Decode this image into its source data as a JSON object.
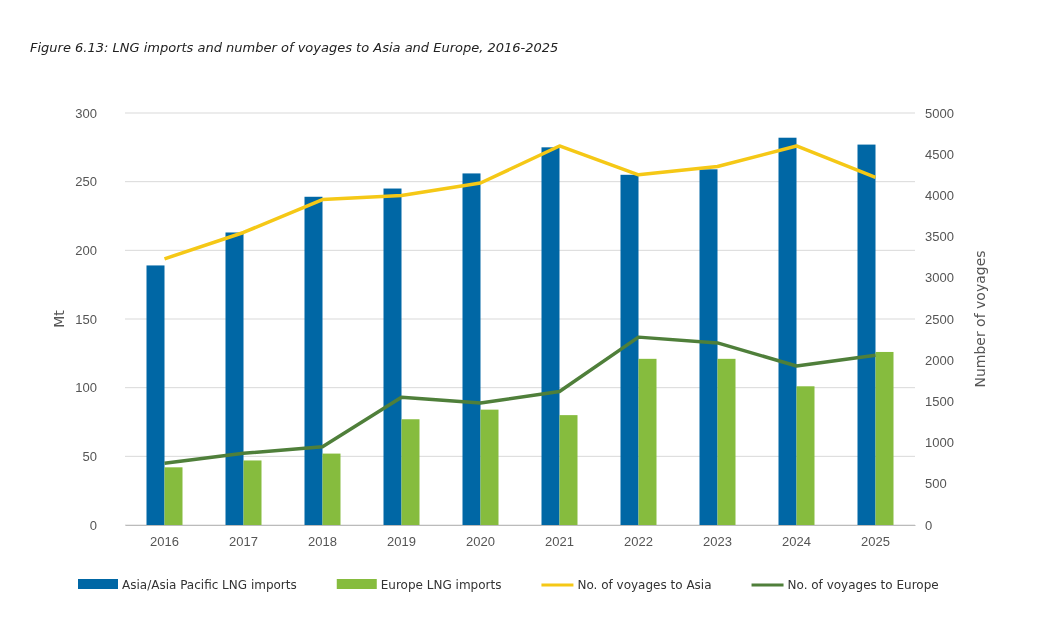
{
  "chart_data": {
    "type": "bar",
    "title": "Figure 6.13: LNG imports and number of voyages to Asia and Europe, 2016-2025",
    "categories": [
      "2016",
      "2017",
      "2018",
      "2019",
      "2020",
      "2021",
      "2022",
      "2023",
      "2024",
      "2025"
    ],
    "series": [
      {
        "name": "Asia/Asia Pacific LNG imports",
        "color": "#0067a5",
        "values": [
          189,
          213,
          239,
          245,
          256,
          275,
          255,
          259,
          282,
          277
        ]
      },
      {
        "name": "Europe LNG imports",
        "color": "#86bc3e",
        "values": [
          42,
          47,
          52,
          77,
          84,
          80,
          121,
          121,
          101,
          126
        ]
      },
      {
        "name": "No. of voyages to Asia",
        "type": "line",
        "axis": "y2",
        "color": "#f5c816",
        "values": [
          3230,
          3550,
          3950,
          4000,
          4150,
          4600,
          4250,
          4350,
          4600,
          4220
        ]
      },
      {
        "name": "No. of voyages to Europe",
        "type": "line",
        "axis": "y2",
        "color": "#4f7f3a",
        "values": [
          750,
          870,
          950,
          1550,
          1480,
          1620,
          2280,
          2210,
          1930,
          2060
        ]
      }
    ],
    "ylabel": "Mt",
    "y2label": "Number of voyages",
    "ylim": [
      0,
      300
    ],
    "yticks": [
      0,
      50,
      100,
      150,
      200,
      250,
      300
    ],
    "y2lim": [
      0,
      5000
    ],
    "y2ticks": [
      0,
      500,
      1000,
      1500,
      2000,
      2500,
      3000,
      3500,
      4000,
      4500,
      5000
    ],
    "grid": "y",
    "legend": "bottom",
    "line_style": "solid",
    "marker": "none"
  }
}
